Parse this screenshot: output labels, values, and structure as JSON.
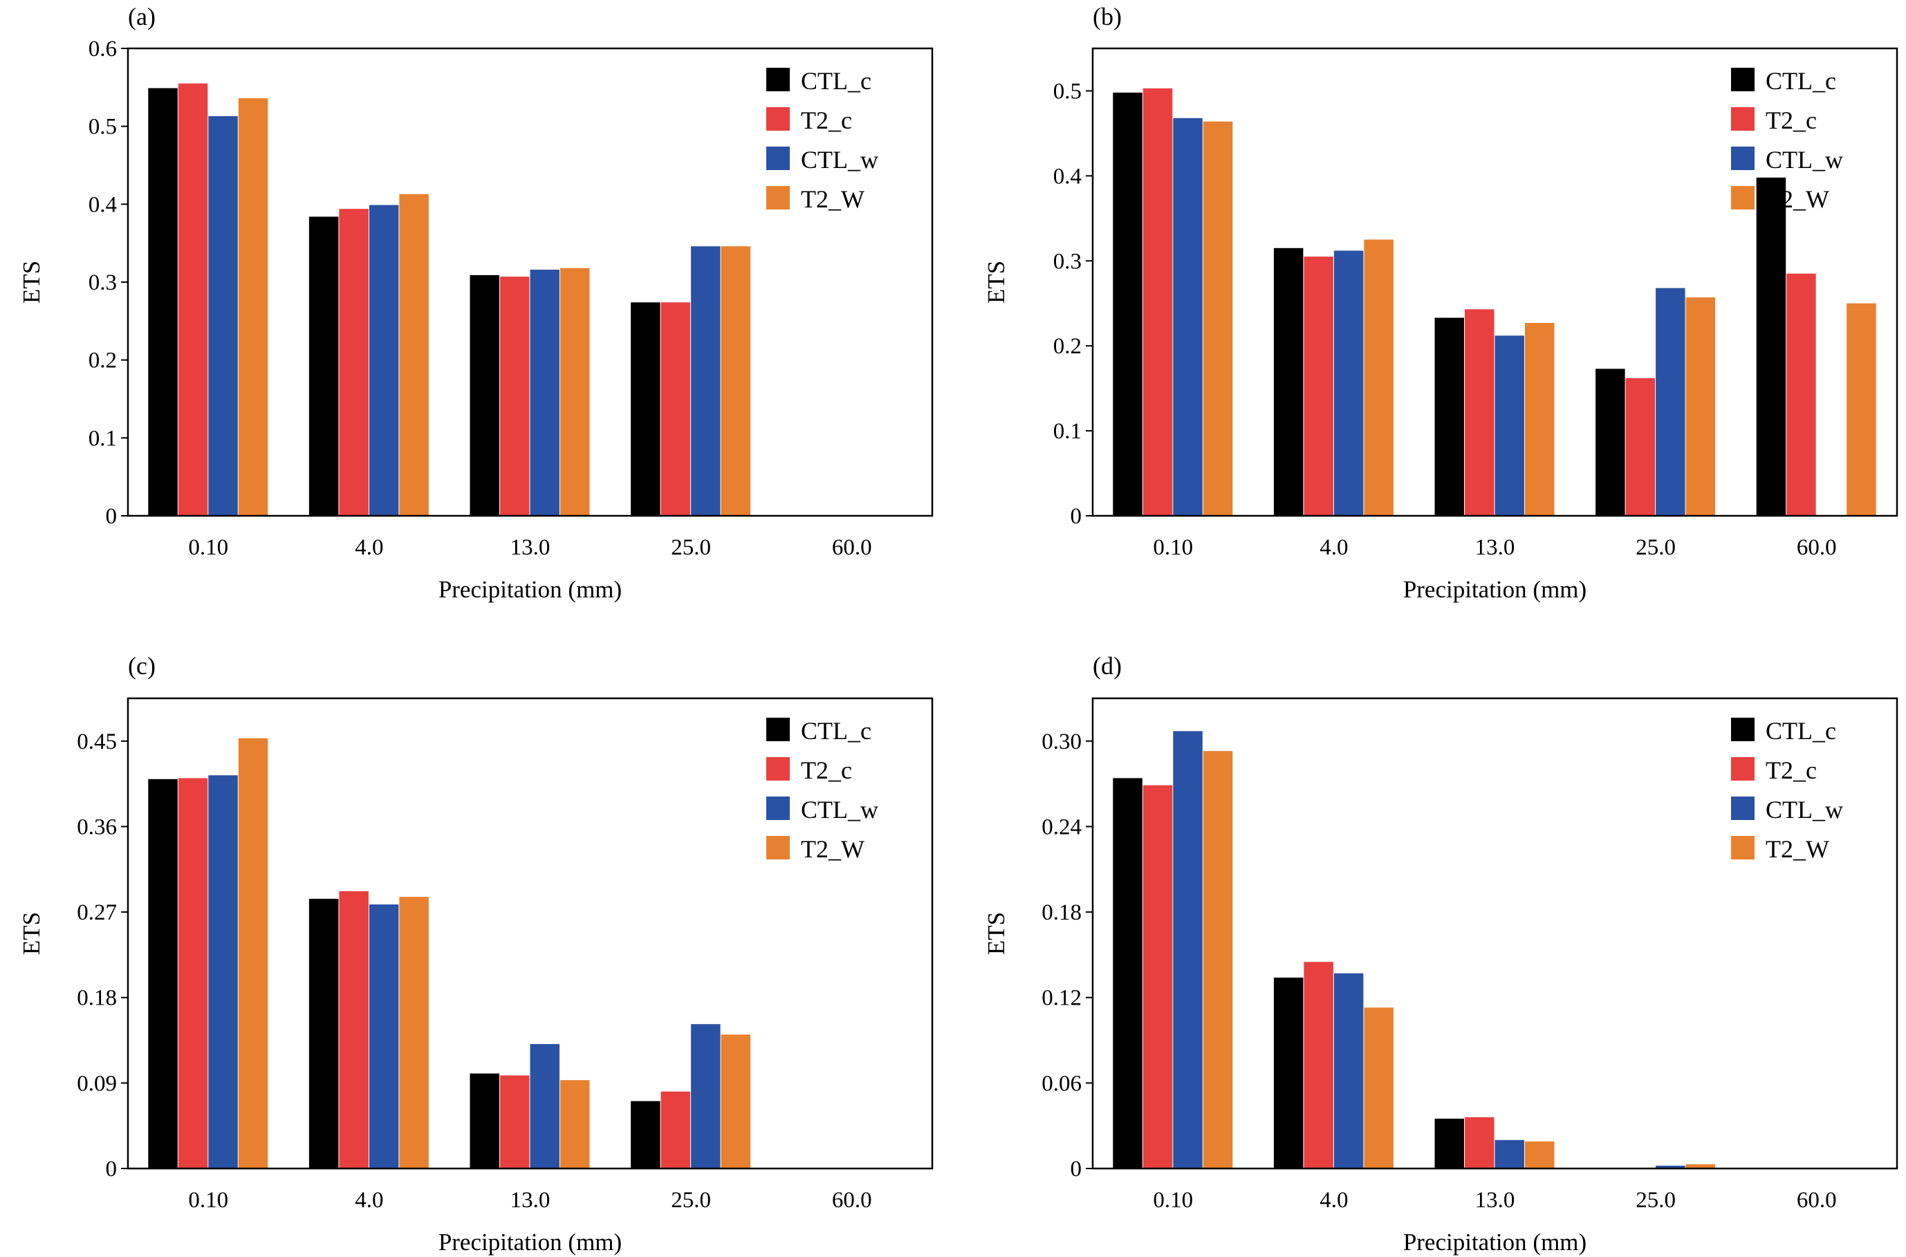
{
  "chart_data": [
    {
      "type": "bar",
      "panel_label": "(a)",
      "xlabel": "Precipitation (mm)",
      "ylabel": "ETS",
      "categories": [
        "0.10",
        "4.0",
        "13.0",
        "25.0",
        "60.0"
      ],
      "ylim": [
        0,
        0.6
      ],
      "yticks": [
        "0",
        "0.1",
        "0.2",
        "0.3",
        "0.4",
        "0.5",
        "0.6"
      ],
      "legend_position": "top-right",
      "series": [
        {
          "name": "CTL_c",
          "color": "#000000",
          "label_color": "#000000",
          "values": [
            0.549,
            0.384,
            0.309,
            0.274,
            0
          ]
        },
        {
          "name": "T2_c",
          "color": "#e8403f",
          "label_color": "#e8403f",
          "values": [
            0.555,
            0.394,
            0.307,
            0.274,
            0
          ]
        },
        {
          "name": "CTL_w",
          "color": "#2a52a4",
          "label_color": "#2a52a4",
          "values": [
            0.513,
            0.399,
            0.316,
            0.346,
            0
          ]
        },
        {
          "name": "T2_W",
          "color": "#e8812f",
          "label_color": "#e8812f",
          "values": [
            0.536,
            0.413,
            0.318,
            0.346,
            0
          ]
        }
      ]
    },
    {
      "type": "bar",
      "panel_label": "(b)",
      "xlabel": "Precipitation (mm)",
      "ylabel": "ETS",
      "categories": [
        "0.10",
        "4.0",
        "13.0",
        "25.0",
        "60.0"
      ],
      "ylim": [
        0,
        0.55
      ],
      "yticks": [
        "0",
        "0.1",
        "0.2",
        "0.3",
        "0.4",
        "0.5"
      ],
      "legend_position": "top-right",
      "series": [
        {
          "name": "CTL_c",
          "color": "#000000",
          "label_color": "#000000",
          "values": [
            0.498,
            0.315,
            0.233,
            0.173,
            0.398
          ]
        },
        {
          "name": "T2_c",
          "color": "#e8403f",
          "label_color": "#e8403f",
          "values": [
            0.503,
            0.305,
            0.243,
            0.162,
            0.285
          ]
        },
        {
          "name": "CTL_w",
          "color": "#2a52a4",
          "label_color": "#2a52a4",
          "values": [
            0.468,
            0.312,
            0.212,
            0.268,
            0
          ]
        },
        {
          "name": "T2_W",
          "color": "#e8812f",
          "label_color": "#e8812f",
          "values": [
            0.464,
            0.325,
            0.227,
            0.257,
            0.25
          ]
        }
      ]
    },
    {
      "type": "bar",
      "panel_label": "(c)",
      "xlabel": "Precipitation (mm)",
      "ylabel": "ETS",
      "categories": [
        "0.10",
        "4.0",
        "13.0",
        "25.0",
        "60.0"
      ],
      "ylim": [
        0,
        0.495
      ],
      "yticks": [
        "0",
        "0.09",
        "0.18",
        "0.27",
        "0.36",
        "0.45"
      ],
      "legend_position": "top-right",
      "series": [
        {
          "name": "CTL_c",
          "color": "#000000",
          "label_color": "#000000",
          "values": [
            0.41,
            0.284,
            0.1,
            0.071,
            0
          ]
        },
        {
          "name": "T2_c",
          "color": "#e8403f",
          "label_color": "#e8403f",
          "values": [
            0.411,
            0.292,
            0.098,
            0.081,
            0
          ]
        },
        {
          "name": "CTL_w",
          "color": "#2a52a4",
          "label_color": "#2a52a4",
          "values": [
            0.414,
            0.278,
            0.131,
            0.152,
            0
          ]
        },
        {
          "name": "T2_W",
          "color": "#e8812f",
          "label_color": "#e8812f",
          "values": [
            0.453,
            0.286,
            0.093,
            0.141,
            0
          ]
        }
      ]
    },
    {
      "type": "bar",
      "panel_label": "(d)",
      "xlabel": "Precipitation (mm)",
      "ylabel": "ETS",
      "categories": [
        "0.10",
        "4.0",
        "13.0",
        "25.0",
        "60.0"
      ],
      "ylim": [
        0,
        0.33
      ],
      "yticks": [
        "0",
        "0.06",
        "0.12",
        "0.18",
        "0.24",
        "0.30"
      ],
      "legend_position": "top-right",
      "series": [
        {
          "name": "CTL_c",
          "color": "#000000",
          "label_color": "#000000",
          "values": [
            0.274,
            0.134,
            0.035,
            0,
            0
          ]
        },
        {
          "name": "T2_c",
          "color": "#e8403f",
          "label_color": "#e8403f",
          "values": [
            0.269,
            0.145,
            0.036,
            0,
            0
          ]
        },
        {
          "name": "CTL_w",
          "color": "#2a52a4",
          "label_color": "#2a52a4",
          "values": [
            0.307,
            0.137,
            0.02,
            0.002,
            0
          ]
        },
        {
          "name": "T2_W",
          "color": "#e8812f",
          "label_color": "#e8812f",
          "values": [
            0.293,
            0.113,
            0.019,
            0.003,
            0
          ]
        }
      ]
    }
  ]
}
